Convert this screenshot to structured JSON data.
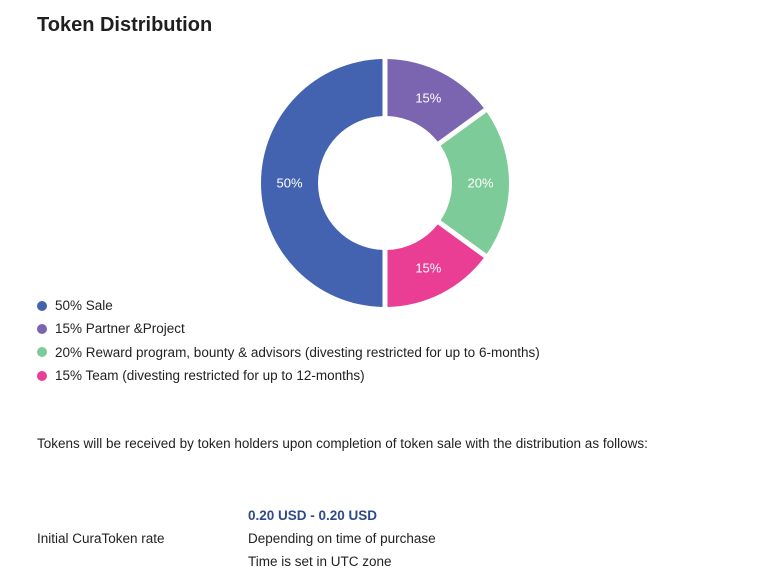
{
  "chart_data": {
    "type": "pie",
    "title": "Token Distribution",
    "categories": [
      "Sale",
      "Partner &Project",
      "Reward program, bounty & advisors (divesting restricted for up to 6-months)",
      "Team (divesting restricted for up to 12-months)"
    ],
    "values": [
      50,
      15,
      20,
      15
    ],
    "slice_labels": [
      "50%",
      "15%",
      "20%",
      "15%"
    ],
    "colors": [
      "#4363b0",
      "#7b64b0",
      "#7dcb98",
      "#ea3e95"
    ],
    "legend": [
      "50% Sale",
      "15% Partner &Project",
      "20% Reward program, bounty & advisors (divesting restricted for up to 6-months)",
      "15% Team (divesting restricted for up to 12-months)"
    ],
    "legend_placement": "bottom-left",
    "donut": true
  },
  "intro_text": "Tokens will be received by token holders upon completion of token sale with the distribution as follows:",
  "rate": {
    "label": "Initial CuraToken rate",
    "value": "0.20 USD - 0.20 USD",
    "line1": "Depending on time of purchase",
    "line2": "Time is set in UTC zone"
  }
}
